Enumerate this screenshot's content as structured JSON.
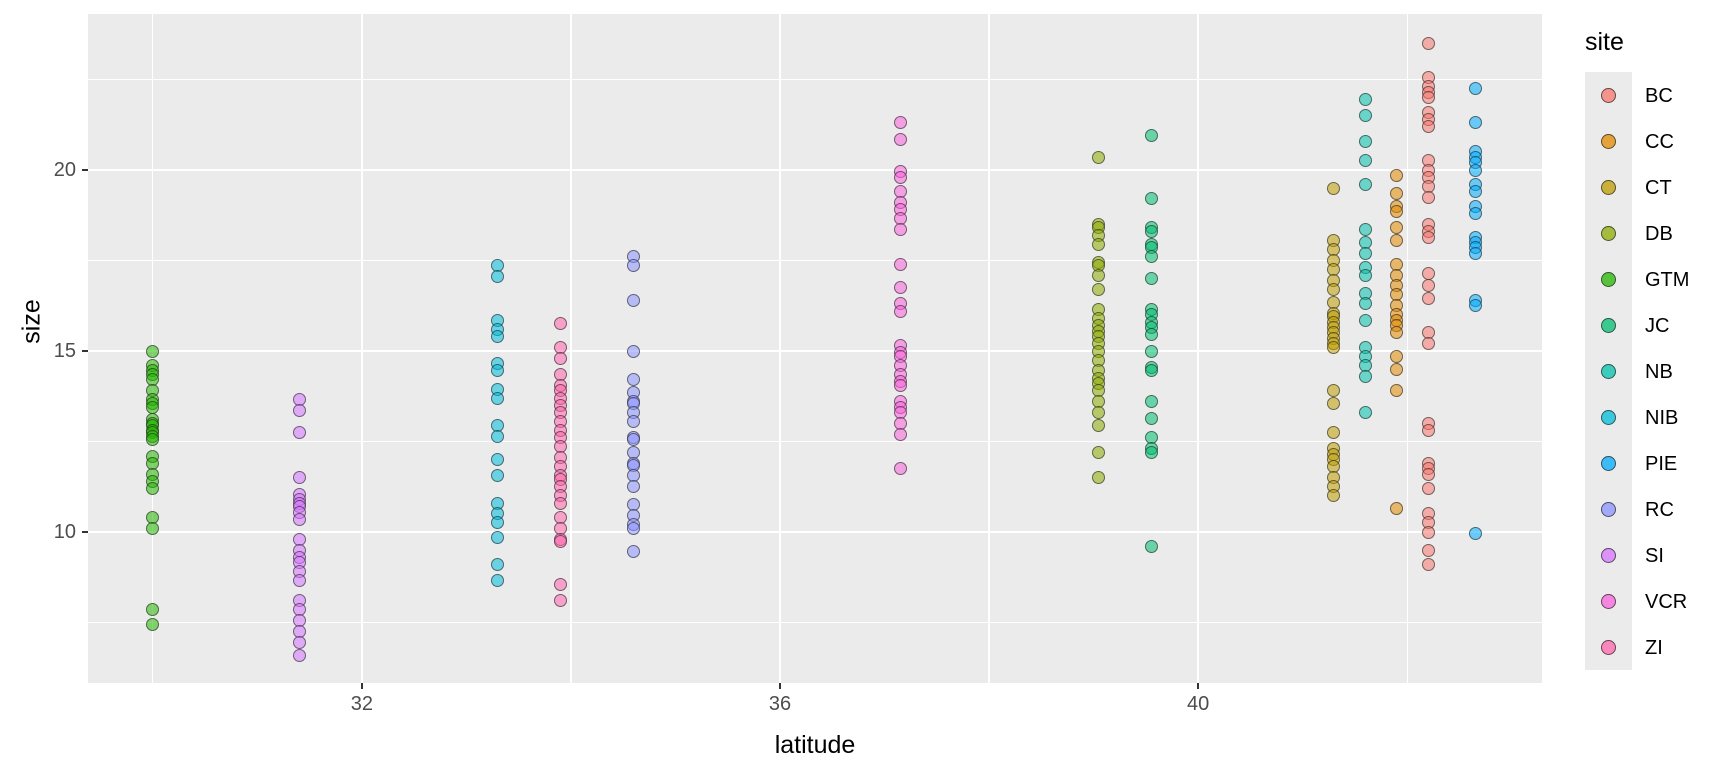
{
  "figure": {
    "background": "#FFFFFF",
    "panel_background": "#EBEBEB",
    "gridline_color": "#FFFFFF"
  },
  "axes": {
    "x_label": "latitude",
    "y_label": "size",
    "tick_color": "#333333",
    "tick_text_color": "#4D4D4D"
  },
  "legend": {
    "title": "site"
  },
  "chart_data": {
    "type": "scatter",
    "title": "",
    "xlabel": "latitude",
    "ylabel": "size",
    "xlim": [
      29.38,
      43.29
    ],
    "ylim": [
      5.83,
      24.31
    ],
    "x_major_ticks": [
      32,
      36,
      40
    ],
    "x_minor_ticks": [
      30,
      34,
      38,
      42
    ],
    "y_major_ticks": [
      10,
      15,
      20
    ],
    "y_minor_ticks": [
      7.5,
      12.5,
      17.5,
      22.5
    ],
    "grid": "major and minor white gridlines on gray panel",
    "legend_title": "site",
    "legend_position": "right",
    "point_style": "filled circle, alpha 0.55, dark outline",
    "series": [
      {
        "name": "BC",
        "color": "#F8766D",
        "latitude": 42.2,
        "sizes": [
          23.5,
          22.55,
          22.3,
          22.15,
          22.0,
          21.6,
          21.4,
          21.2,
          20.25,
          20.0,
          19.8,
          19.55,
          19.25,
          18.5,
          18.3,
          18.15,
          17.15,
          16.8,
          16.45,
          15.5,
          15.2,
          13.0,
          12.8,
          11.9,
          11.75,
          11.6,
          11.2,
          10.5,
          10.25,
          10.0,
          9.5,
          9.1
        ]
      },
      {
        "name": "CC",
        "color": "#E18A00",
        "latitude": 41.9,
        "sizes": [
          19.85,
          19.35,
          19.0,
          18.85,
          18.4,
          18.05,
          17.4,
          17.1,
          16.8,
          16.55,
          16.25,
          16.0,
          15.85,
          15.7,
          15.5,
          14.85,
          14.5,
          13.9,
          10.65
        ]
      },
      {
        "name": "CT",
        "color": "#BE9C00",
        "latitude": 41.3,
        "sizes": [
          19.5,
          18.05,
          17.8,
          17.5,
          17.25,
          16.95,
          16.7,
          16.35,
          16.05,
          15.95,
          15.8,
          15.65,
          15.5,
          15.35,
          15.2,
          15.1,
          13.9,
          13.55,
          12.75,
          12.3,
          12.15,
          12.0,
          11.8,
          11.5,
          11.25,
          11.0
        ]
      },
      {
        "name": "DB",
        "color": "#8CAB00",
        "latitude": 39.05,
        "sizes": [
          20.35,
          18.5,
          18.4,
          18.2,
          17.95,
          17.45,
          17.35,
          17.1,
          16.7,
          16.15,
          15.9,
          15.7,
          15.55,
          15.4,
          15.2,
          15.0,
          14.75,
          14.45,
          14.25,
          14.1,
          13.9,
          13.6,
          13.3,
          12.95,
          12.2,
          11.5
        ]
      },
      {
        "name": "GTM",
        "color": "#24B700",
        "latitude": 30.0,
        "sizes": [
          15.0,
          14.6,
          14.45,
          14.35,
          14.2,
          13.9,
          13.65,
          13.55,
          13.45,
          13.1,
          13.0,
          12.95,
          12.8,
          12.75,
          12.65,
          12.55,
          12.1,
          11.9,
          11.6,
          11.4,
          11.2,
          10.4,
          10.1,
          7.85,
          7.45
        ]
      },
      {
        "name": "JC",
        "color": "#00BE70",
        "latitude": 39.55,
        "sizes": [
          20.95,
          19.2,
          18.4,
          18.3,
          17.95,
          17.85,
          17.6,
          17.0,
          16.15,
          16.0,
          15.8,
          15.65,
          15.45,
          15.0,
          14.55,
          14.45,
          13.6,
          13.15,
          12.6,
          12.3,
          12.2,
          9.6
        ]
      },
      {
        "name": "NB",
        "color": "#00C1AB",
        "latitude": 41.6,
        "sizes": [
          21.95,
          21.5,
          20.8,
          20.25,
          19.6,
          18.35,
          18.0,
          17.7,
          17.3,
          17.1,
          16.6,
          16.3,
          15.85,
          15.1,
          14.85,
          14.6,
          14.3,
          13.3
        ]
      },
      {
        "name": "NIB",
        "color": "#00BBDA",
        "latitude": 33.3,
        "sizes": [
          17.35,
          17.05,
          15.85,
          15.6,
          15.4,
          14.65,
          14.45,
          13.95,
          13.7,
          12.95,
          12.65,
          12.0,
          11.55,
          10.8,
          10.5,
          10.25,
          9.85,
          9.1,
          8.65
        ]
      },
      {
        "name": "PIE",
        "color": "#00ACFC",
        "latitude": 42.65,
        "sizes": [
          22.25,
          21.3,
          20.5,
          20.35,
          20.2,
          20.0,
          19.6,
          19.4,
          19.0,
          18.8,
          18.15,
          18.0,
          17.85,
          17.7,
          16.4,
          16.25,
          9.95
        ]
      },
      {
        "name": "RC",
        "color": "#8B93FF",
        "latitude": 34.6,
        "sizes": [
          17.6,
          17.35,
          16.4,
          15.0,
          14.2,
          13.85,
          13.6,
          13.55,
          13.3,
          13.05,
          12.6,
          12.55,
          12.2,
          11.9,
          11.85,
          11.55,
          11.25,
          10.75,
          10.45,
          10.2,
          10.1,
          9.45
        ]
      },
      {
        "name": "SI",
        "color": "#D575FE",
        "latitude": 31.4,
        "sizes": [
          13.65,
          13.35,
          12.75,
          11.5,
          11.05,
          10.9,
          10.8,
          10.7,
          10.55,
          10.35,
          9.8,
          9.5,
          9.3,
          9.15,
          8.9,
          8.65,
          8.1,
          7.85,
          7.55,
          7.25,
          6.95,
          6.6
        ]
      },
      {
        "name": "VCR",
        "color": "#F962DD",
        "latitude": 37.15,
        "sizes": [
          21.3,
          20.85,
          19.95,
          19.8,
          19.4,
          19.1,
          18.9,
          18.65,
          18.35,
          17.4,
          16.75,
          16.3,
          16.1,
          15.15,
          14.95,
          14.85,
          14.6,
          14.35,
          14.15,
          14.05,
          13.6,
          13.45,
          13.3,
          13.0,
          12.7,
          11.75
        ]
      },
      {
        "name": "ZI",
        "color": "#FF65AC",
        "latitude": 33.9,
        "sizes": [
          15.75,
          15.1,
          14.8,
          14.35,
          14.05,
          13.9,
          13.7,
          13.5,
          13.3,
          13.05,
          12.8,
          12.6,
          12.35,
          12.05,
          11.8,
          11.55,
          11.45,
          11.25,
          11.0,
          10.8,
          10.4,
          10.1,
          9.8,
          9.75,
          8.55,
          8.1
        ]
      }
    ]
  }
}
